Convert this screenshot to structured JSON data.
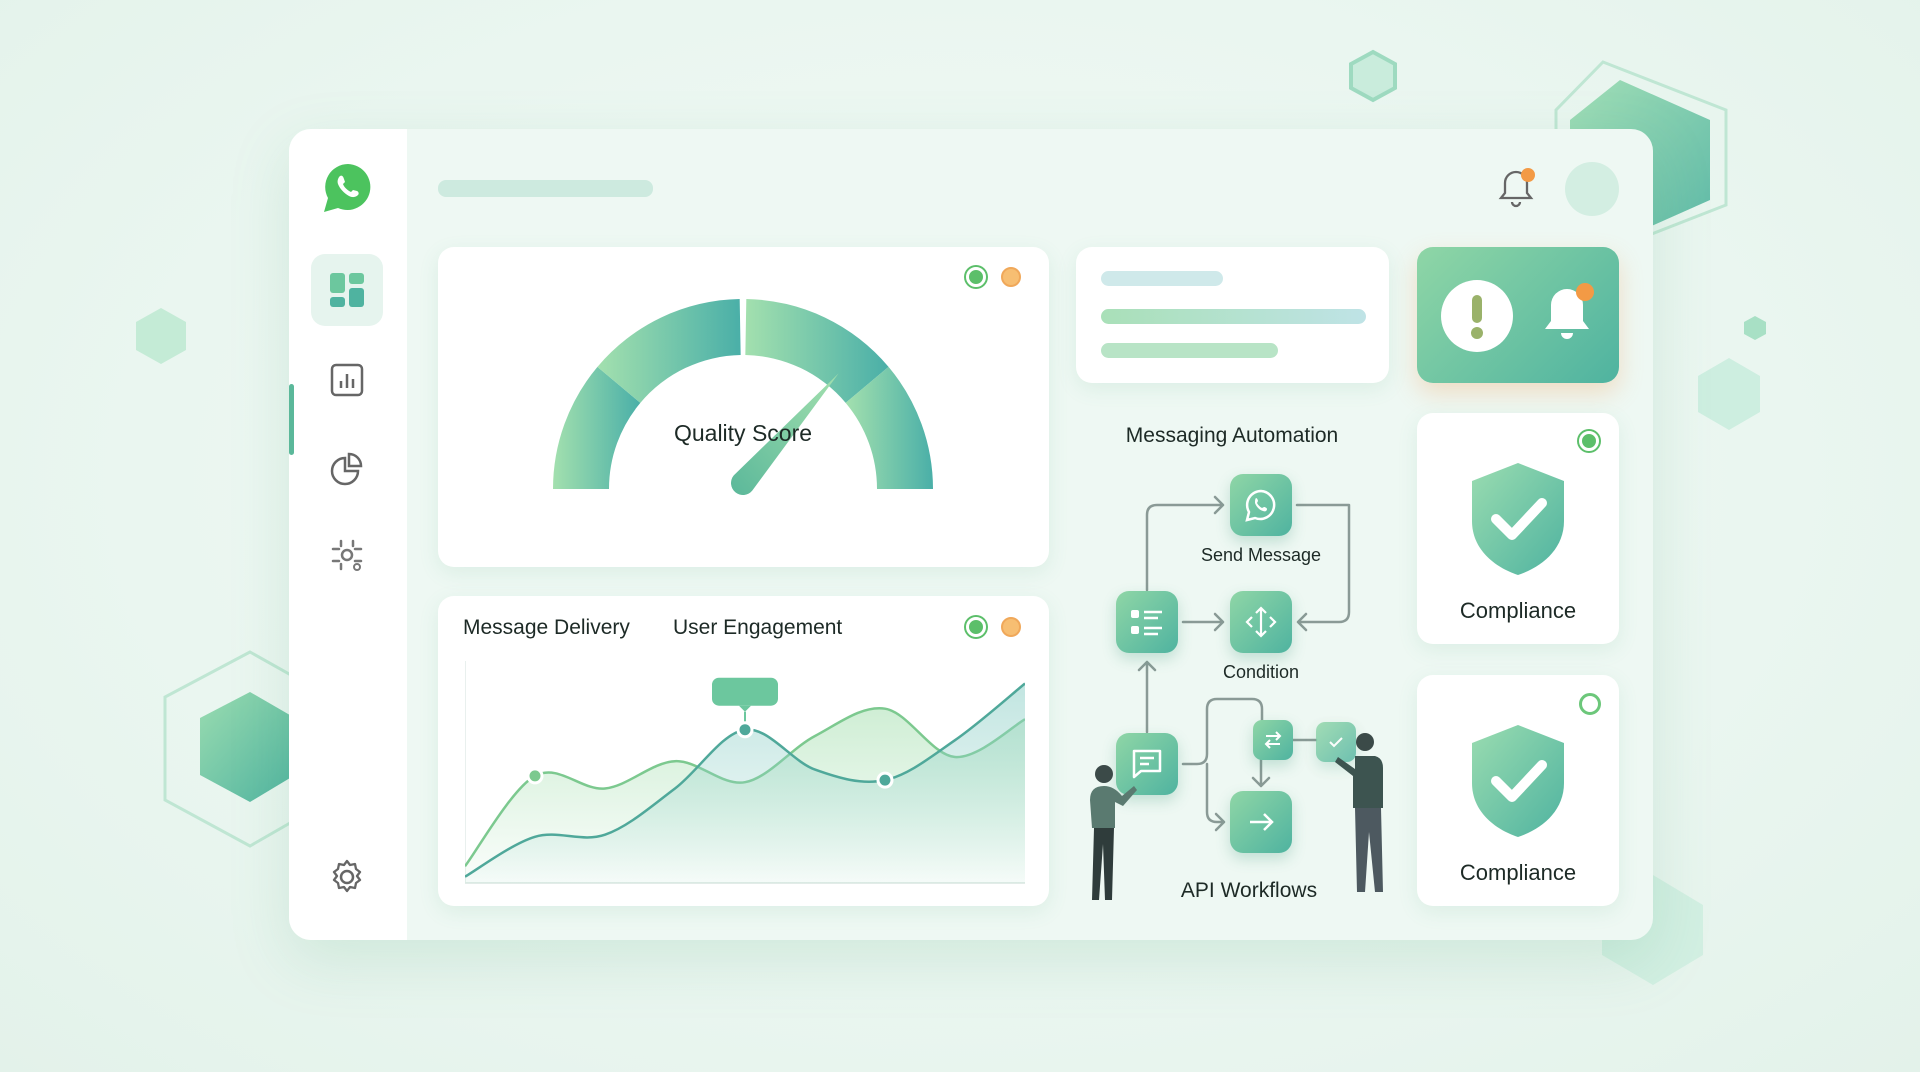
{
  "app": {
    "logo": "whatsapp-logo-icon",
    "accent": "#4fb3a0",
    "accent_light": "#8fd6a6",
    "status_green": "#5cbf6a",
    "status_orange": "#f7be72"
  },
  "sidebar": {
    "items": [
      {
        "icon": "dashboard-icon",
        "active": true
      },
      {
        "icon": "bar-chart-icon",
        "active": false
      },
      {
        "icon": "pie-chart-icon",
        "active": false
      },
      {
        "icon": "automation-settings-icon",
        "active": false
      }
    ],
    "footer_icon": "settings-gear-icon"
  },
  "header": {
    "notification_badge": true
  },
  "quality": {
    "title": "Quality Score",
    "level": 0.72
  },
  "engagement": {
    "legend": [
      "Message Delivery",
      "User Engagement"
    ]
  },
  "automation": {
    "title": "Messaging Automation",
    "nodes": {
      "send": "Send Message",
      "condition": "Condition"
    },
    "footer": "API Workflows"
  },
  "compliance": [
    {
      "label": "Compliance",
      "status": "active"
    },
    {
      "label": "Compliance",
      "status": "inactive"
    }
  ],
  "chart_data": {
    "type": "area",
    "x": [
      0,
      1,
      2,
      3,
      4,
      5,
      6,
      7,
      8
    ],
    "series": [
      {
        "name": "Message Delivery",
        "values": [
          8,
          51,
          45,
          58,
          48,
          70,
          83,
          60,
          78
        ]
      },
      {
        "name": "User Engagement",
        "values": [
          3,
          22,
          23,
          45,
          73,
          54,
          49,
          68,
          95
        ]
      }
    ],
    "highlighted": [
      {
        "series": 0,
        "index": 1
      },
      {
        "series": 1,
        "index": 4
      },
      {
        "series": 1,
        "index": 6
      }
    ],
    "grid": false,
    "legend": "top-left"
  }
}
